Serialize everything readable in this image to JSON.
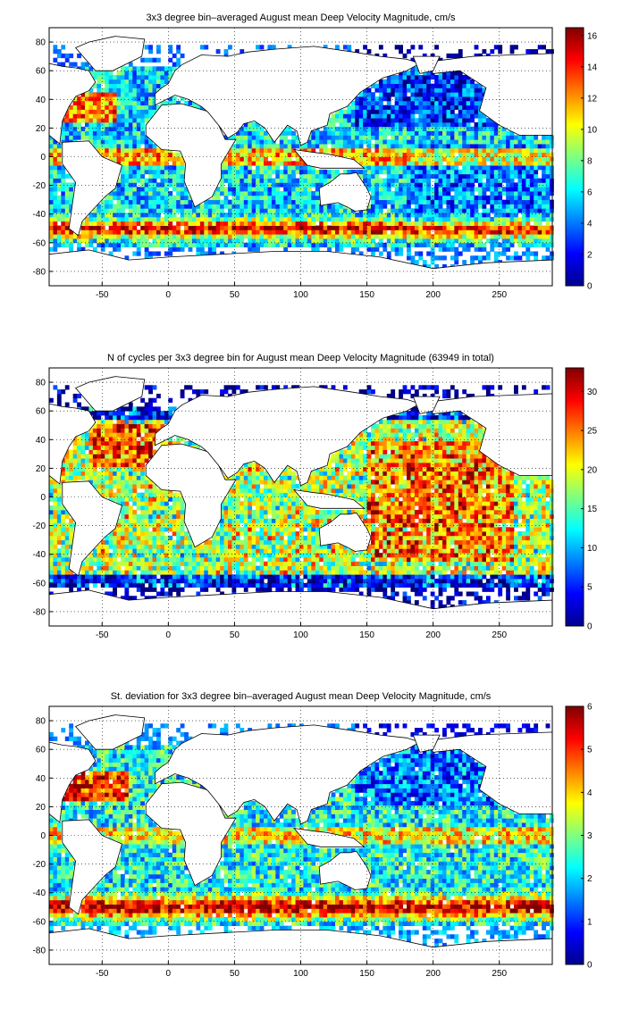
{
  "chart_data": [
    {
      "type": "heatmap",
      "title": "3x3 degree bin–averaged August mean Deep Velocity Magnitude, cm/s",
      "xlabel": "",
      "ylabel": "",
      "xlim": [
        -90,
        290
      ],
      "ylim": [
        -90,
        90
      ],
      "x_ticks": [
        -50,
        0,
        50,
        100,
        150,
        200,
        250
      ],
      "y_ticks": [
        -80,
        -60,
        -40,
        -20,
        0,
        20,
        40,
        60,
        80
      ],
      "bin_size_deg": 3,
      "colormap": "jet",
      "color_range": [
        0,
        16.5
      ],
      "colorbar_ticks": [
        0,
        2,
        4,
        6,
        8,
        10,
        12,
        14,
        16
      ],
      "grid": true,
      "legend": "colorbar-right"
    },
    {
      "type": "heatmap",
      "title": "N of cycles per 3x3 degree bin for August mean Deep Velocity Magnitude (63949 in total)",
      "xlabel": "",
      "ylabel": "",
      "xlim": [
        -90,
        290
      ],
      "ylim": [
        -90,
        90
      ],
      "x_ticks": [
        -50,
        0,
        50,
        100,
        150,
        200,
        250
      ],
      "y_ticks": [
        -80,
        -60,
        -40,
        -20,
        0,
        20,
        40,
        60,
        80
      ],
      "bin_size_deg": 3,
      "colormap": "jet",
      "color_range": [
        0,
        33
      ],
      "colorbar_ticks": [
        0,
        5,
        10,
        15,
        20,
        25,
        30
      ],
      "grid": true,
      "legend": "colorbar-right"
    },
    {
      "type": "heatmap",
      "title": "St. deviation for 3x3 degree bin–averaged August mean Deep Velocity Magnitude, cm/s",
      "xlabel": "",
      "ylabel": "",
      "xlim": [
        -90,
        290
      ],
      "ylim": [
        -90,
        90
      ],
      "x_ticks": [
        -50,
        0,
        50,
        100,
        150,
        200,
        250
      ],
      "y_ticks": [
        -80,
        -60,
        -40,
        -20,
        0,
        20,
        40,
        60,
        80
      ],
      "bin_size_deg": 3,
      "colormap": "jet",
      "color_range": [
        0,
        6
      ],
      "colorbar_ticks": [
        0,
        1,
        2,
        3,
        4,
        5,
        6
      ],
      "grid": true,
      "legend": "colorbar-right"
    }
  ]
}
